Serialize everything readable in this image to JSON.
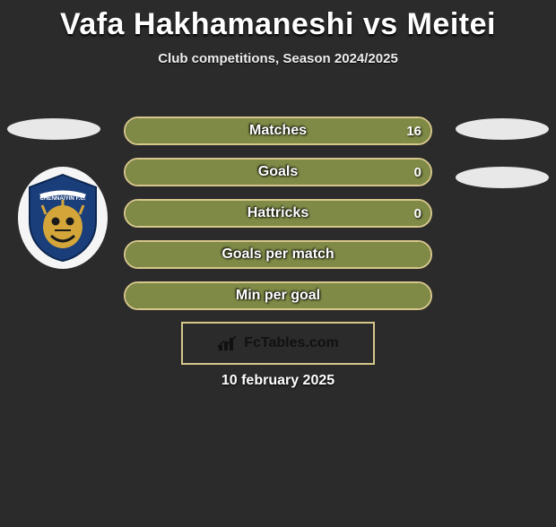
{
  "title": "Vafa Hakhamaneshi vs Meitei",
  "subtitle": "Club competitions, Season 2024/2025",
  "date": "10 february 2025",
  "footer": {
    "label": "FcTables.com",
    "border_color": "#d6c78a"
  },
  "badge": {
    "name": "chennaiyin-fc-logo",
    "primary": "#1a3e7a",
    "accent": "#d4a63a",
    "text": "CHENNAIYIN F.C."
  },
  "ellipse_color": "#e8e8e8",
  "bars": {
    "border_color": "#d6c78a",
    "fill_color": "#7e8a46",
    "label_color": "#ffffff",
    "items": [
      {
        "label": "Matches",
        "right": "16",
        "fill_pct": 100
      },
      {
        "label": "Goals",
        "right": "0",
        "fill_pct": 100
      },
      {
        "label": "Hattricks",
        "right": "0",
        "fill_pct": 100
      },
      {
        "label": "Goals per match",
        "right": "",
        "fill_pct": 100
      },
      {
        "label": "Min per goal",
        "right": "",
        "fill_pct": 100
      }
    ]
  }
}
